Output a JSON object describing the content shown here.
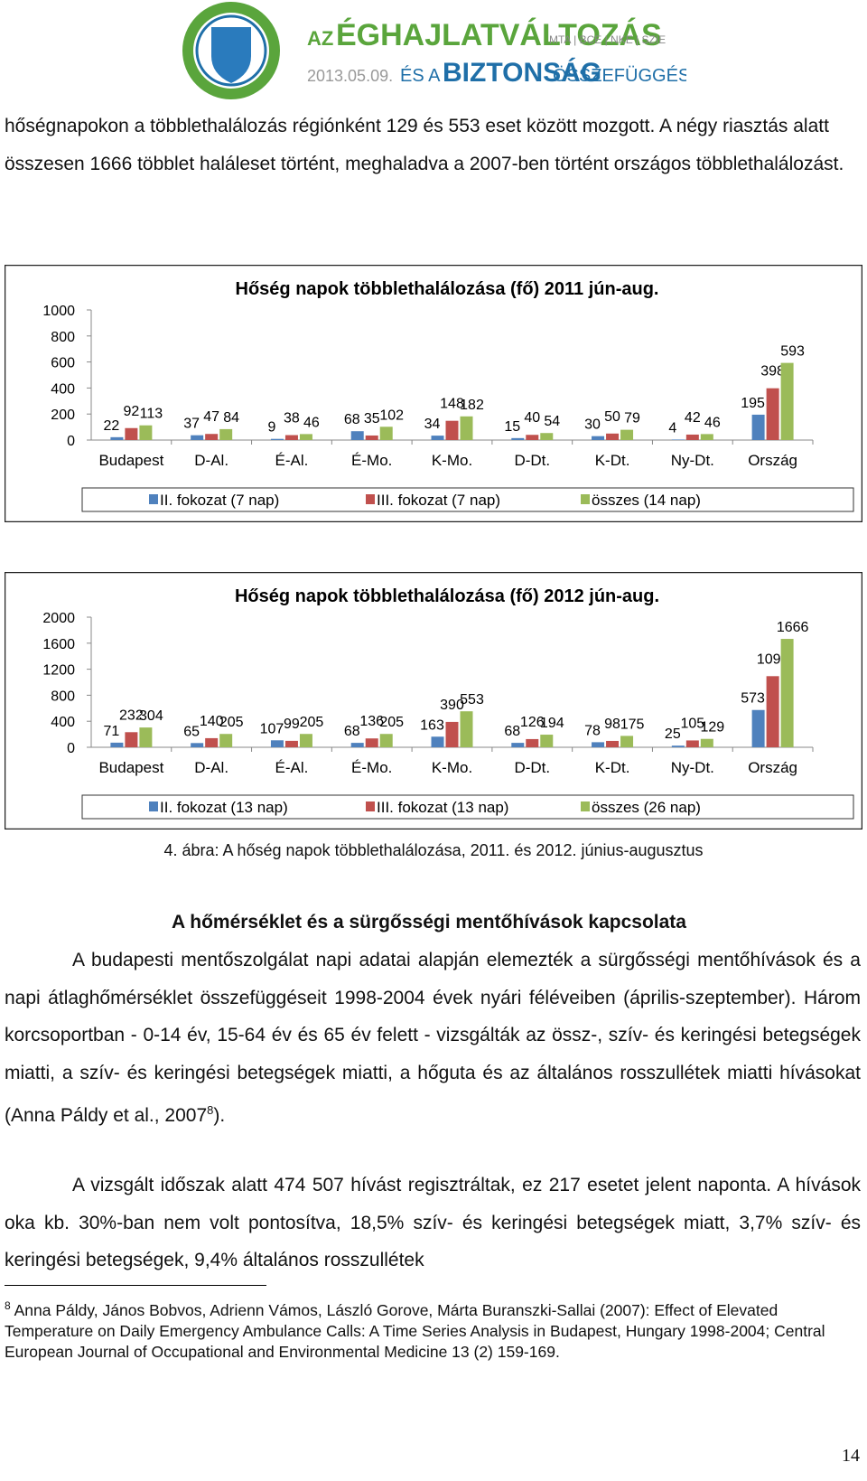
{
  "header": {
    "az": "AZ",
    "title1": "ÉGHAJLATVÁLTOZÁS",
    "partners": "MTA | BCE | NKE | SZIE",
    "date": "2013.05.09.",
    "es_a": "ÉS A",
    "title2": "BIZTONSÁG",
    "title3": "ÖSSZEFÜGGÉSEI"
  },
  "body": {
    "para1": "hőségnapokon a többlethalálozás régiónként 129 és 553 eset között mozgott. A négy riasztás alatt összesen 1666 többlet haláleset történt, meghaladva a 2007-ben történt országos többlethalálozást.",
    "figure_caption": "4. ábra: A hőség napok többlethalálozása, 2011. és 2012. június-augusztus",
    "heading": "A hőmérséklet és a sürgősségi mentőhívások kapcsolata",
    "para2": {
      "text": "A budapesti mentőszolgálat napi adatai alapján elemezték a sürgősségi mentőhívások és a napi átlaghőmérséklet összefüggéseit 1998-2004 évek nyári féléveiben (április-szeptember). Három korcsoportban - 0-14 év, 15-64 év és 65 év felett - vizsgálták az össz-, szív- és keringési betegségek miatti, a szív- és keringési betegségek miatti, a hőguta és az általános rosszullétek miatti hívásokat (Anna Páldy et al., 2007",
      "footnote_ref": "8",
      "text_end": ")."
    },
    "para3": "A vizsgált időszak alatt 474 507 hívást regisztráltak, ez 217 esetet jelent naponta. A hívások oka kb. 30%-ban nem volt pontosítva, 18,5% szív- és keringési betegségek miatt, 3,7% szív- és keringési betegségek, 9,4% általános rosszullétek"
  },
  "footnote": {
    "number": "8",
    "text": "Anna Páldy, János Bobvos, Adrienn Vámos, László Gorove, Márta Buranszki-Sallai (2007): Effect of Elevated Temperature on Daily Emergency Ambulance Calls: A Time Series Analysis in Budapest, Hungary 1998-2004; Central European Journal of Occupational and Environmental Medicine 13 (2) 159-169."
  },
  "page_number": "14",
  "chart_data": [
    {
      "type": "bar",
      "title": "Hőség napok többlethalálozása (fő) 2011 jún-aug.",
      "categories": [
        "Budapest",
        "D-Al.",
        "É-Al.",
        "É-Mo.",
        "K-Mo.",
        "D-Dt.",
        "K-Dt.",
        "Ny-Dt.",
        "Ország"
      ],
      "series": [
        {
          "name": "II. fokozat (7 nap)",
          "color": "#4f81bd",
          "values": [
            22,
            37,
            9,
            68,
            34,
            15,
            30,
            4,
            195
          ]
        },
        {
          "name": "III. fokozat (7 nap)",
          "color": "#c0504d",
          "values": [
            92,
            47,
            38,
            35,
            148,
            40,
            50,
            42,
            398
          ]
        },
        {
          "name": "összes (14 nap)",
          "color": "#9bbb59",
          "values": [
            113,
            84,
            46,
            102,
            182,
            54,
            79,
            46,
            593
          ]
        }
      ],
      "ylim": [
        0,
        1000
      ],
      "yticks": [
        0,
        200,
        400,
        600,
        800,
        1000
      ],
      "grid": false,
      "data_labels": true,
      "legend": "bottom"
    },
    {
      "type": "bar",
      "title": "Hőség napok többlethalálozása (fő) 2012 jún-aug.",
      "categories": [
        "Budapest",
        "D-Al.",
        "É-Al.",
        "É-Mo.",
        "K-Mo.",
        "D-Dt.",
        "K-Dt.",
        "Ny-Dt.",
        "Ország"
      ],
      "series": [
        {
          "name": "II. fokozat (13 nap)",
          "color": "#4f81bd",
          "values": [
            71,
            65,
            107,
            68,
            163,
            68,
            78,
            25,
            573
          ]
        },
        {
          "name": "III. fokozat (13 nap)",
          "color": "#c0504d",
          "values": [
            232,
            140,
            99,
            136,
            390,
            126,
            98,
            105,
            1093
          ]
        },
        {
          "name": "összes (26 nap)",
          "color": "#9bbb59",
          "values": [
            304,
            205,
            205,
            205,
            553,
            194,
            175,
            129,
            1666
          ]
        }
      ],
      "ylim": [
        0,
        2000
      ],
      "yticks": [
        0,
        400,
        800,
        1200,
        1600,
        2000
      ],
      "grid": false,
      "data_labels": true,
      "legend": "bottom"
    }
  ]
}
